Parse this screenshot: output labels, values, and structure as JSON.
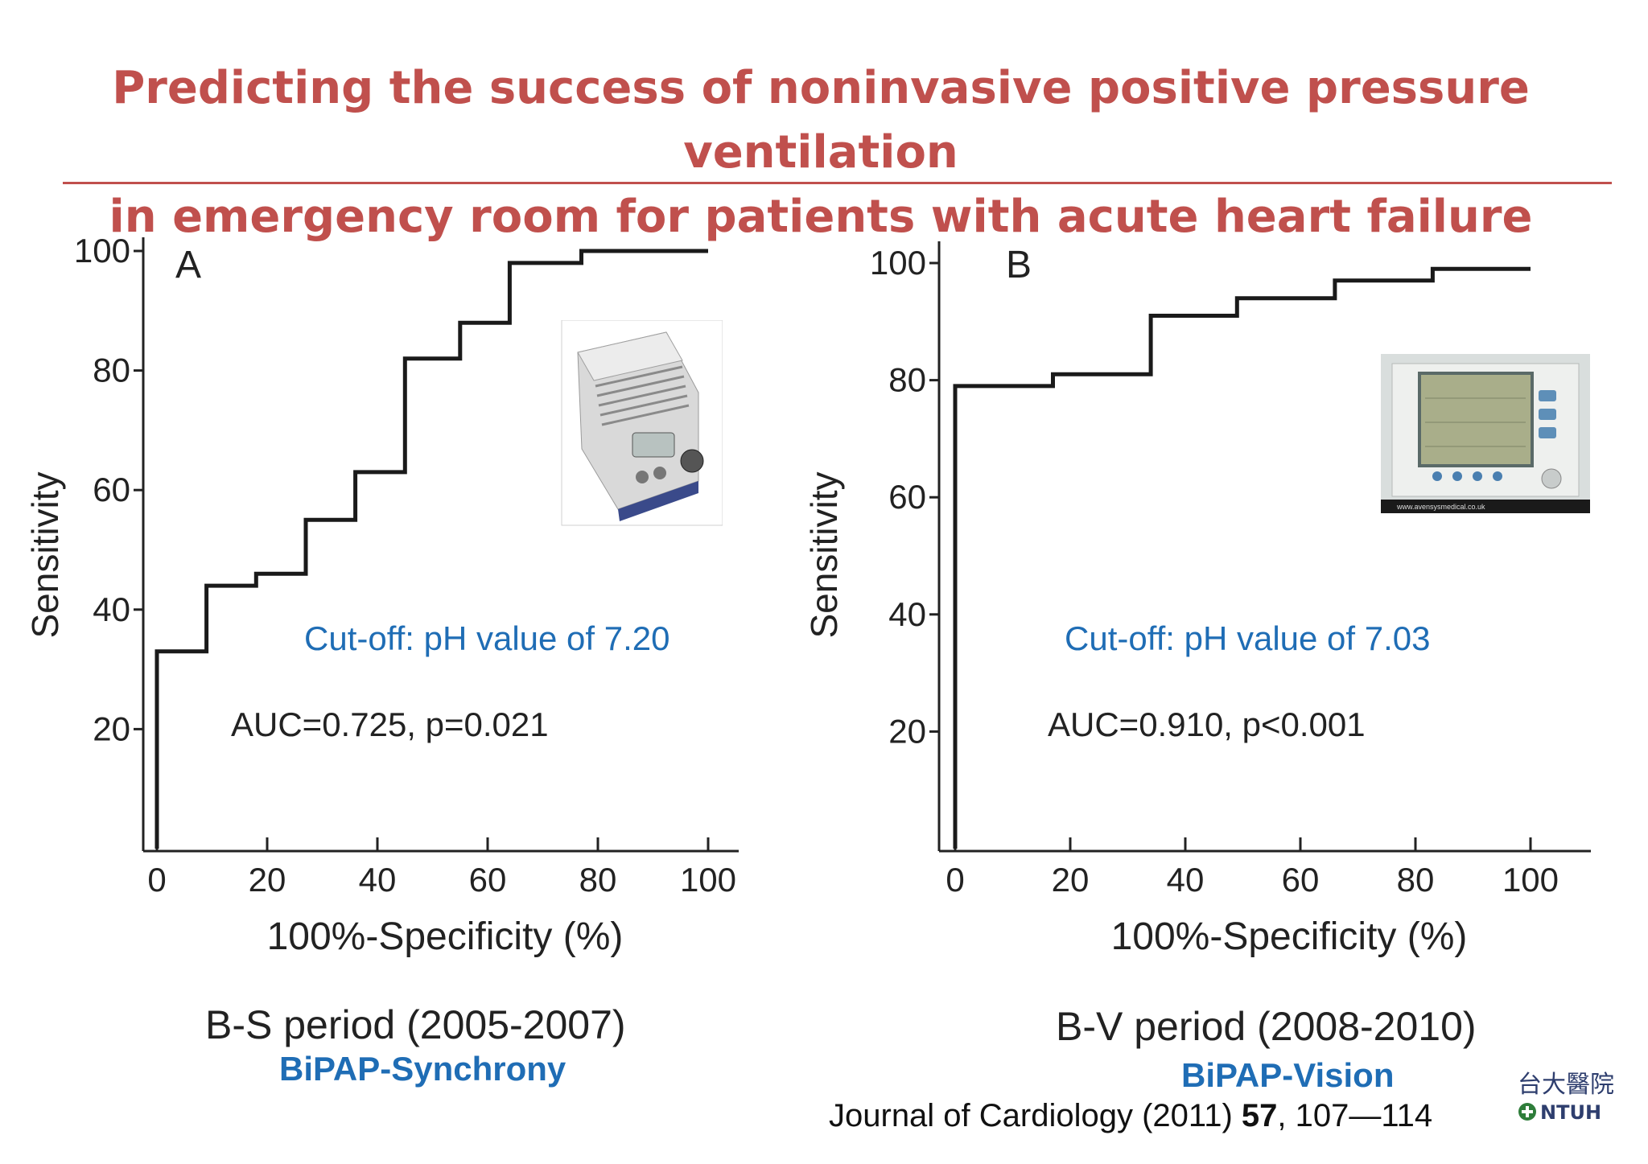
{
  "title": {
    "line1": "Predicting the success of noninvasive positive pressure ventilation",
    "line2": "in emergency room for patients with acute heart failure"
  },
  "colors": {
    "title": "#c0504d",
    "cutoff_text": "#1f6db5",
    "device_text": "#1f6db5",
    "curve": "#1a1a1a"
  },
  "chart_data": [
    {
      "type": "line",
      "step": true,
      "panel_label": "A",
      "xlabel": "100%-Specificity (%)",
      "ylabel": "Sensitivity",
      "xlim": [
        0,
        100
      ],
      "ylim": [
        0,
        100
      ],
      "x_ticks": [
        0,
        20,
        40,
        60,
        80,
        100
      ],
      "y_ticks": [
        20,
        40,
        60,
        80,
        100
      ],
      "points": [
        [
          0,
          0
        ],
        [
          0,
          33
        ],
        [
          9,
          33
        ],
        [
          9,
          44
        ],
        [
          18,
          44
        ],
        [
          18,
          46
        ],
        [
          27,
          46
        ],
        [
          27,
          55
        ],
        [
          36,
          55
        ],
        [
          36,
          63
        ],
        [
          45,
          63
        ],
        [
          45,
          82
        ],
        [
          55,
          82
        ],
        [
          55,
          88
        ],
        [
          64,
          88
        ],
        [
          64,
          98
        ],
        [
          77,
          98
        ],
        [
          77,
          100
        ],
        [
          100,
          100
        ]
      ],
      "cutoff": "Cut-off: pH value of 7.20",
      "stats": "AUC=0.725, p=0.021",
      "period": "B-S period (2005-2007)",
      "device": "BiPAP-Synchrony"
    },
    {
      "type": "line",
      "step": true,
      "panel_label": "B",
      "xlabel": "100%-Specificity (%)",
      "ylabel": "Sensitivity",
      "xlim": [
        0,
        100
      ],
      "ylim": [
        0,
        100
      ],
      "x_ticks": [
        0,
        20,
        40,
        60,
        80,
        100
      ],
      "y_ticks": [
        20,
        40,
        60,
        80,
        100
      ],
      "points": [
        [
          0,
          0
        ],
        [
          0,
          79
        ],
        [
          17,
          79
        ],
        [
          17,
          81
        ],
        [
          34,
          81
        ],
        [
          34,
          91
        ],
        [
          49,
          91
        ],
        [
          49,
          94
        ],
        [
          66,
          94
        ],
        [
          66,
          97
        ],
        [
          83,
          97
        ],
        [
          83,
          99
        ],
        [
          100,
          99
        ]
      ],
      "cutoff": "Cut-off: pH value of 7.03",
      "stats": "AUC=0.910, p<0.001",
      "period": "B-V period (2008-2010)",
      "device": "BiPAP-Vision"
    }
  ],
  "journal": {
    "name": "Journal of Cardiology (2011) ",
    "volume": "57",
    "pages": ", 107—114"
  },
  "logo": {
    "icon": "ntuh-hospital-logo",
    "chinese": "台大醫院",
    "text": "NTUH"
  },
  "images": [
    {
      "icon": "bipap-synchrony-device-photo"
    },
    {
      "icon": "bipap-vision-device-photo",
      "caption": "www.avensysmedical.co.uk"
    }
  ]
}
